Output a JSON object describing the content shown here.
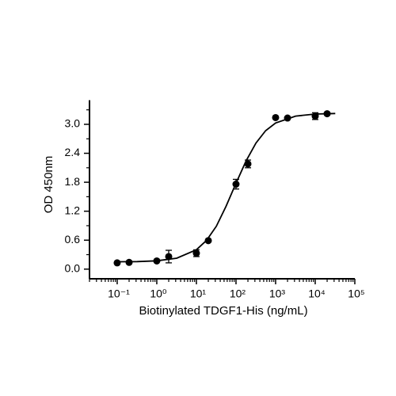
{
  "chart_data": {
    "type": "scatter",
    "xlabel": "Biotinylated TDGF1-His (ng/mL)",
    "ylabel": "OD 450nm",
    "xscale": "log",
    "xlim": [
      0.02,
      100000
    ],
    "xticks": [
      {
        "value": 0.1,
        "label": "10⁻¹"
      },
      {
        "value": 1,
        "label": "10⁰"
      },
      {
        "value": 10,
        "label": "10¹"
      },
      {
        "value": 100,
        "label": "10²"
      },
      {
        "value": 1000,
        "label": "10³"
      },
      {
        "value": 10000,
        "label": "10⁴"
      },
      {
        "value": 100000,
        "label": "10⁵"
      }
    ],
    "ylim": [
      -0.2,
      3.5
    ],
    "yticks": [
      {
        "value": 0,
        "label": "0.0"
      },
      0.6,
      1.2,
      1.8,
      2.4,
      {
        "value": 3,
        "label": "3.0"
      }
    ],
    "color": "#000000",
    "x": [
      0.1,
      0.2,
      1,
      2,
      10,
      20,
      100,
      200,
      1000,
      2000,
      10000,
      20000
    ],
    "values": [
      0.13,
      0.14,
      0.17,
      0.26,
      0.33,
      0.59,
      1.76,
      2.18,
      3.14,
      3.13,
      3.17,
      3.22
    ],
    "errors": [
      null,
      null,
      null,
      0.13,
      0.07,
      null,
      0.1,
      0.08,
      null,
      null,
      0.07,
      null
    ],
    "curve": {
      "x": [
        0.1,
        0.32,
        1,
        3.2,
        10,
        18,
        32,
        56,
        100,
        180,
        320,
        560,
        1000,
        3200,
        10000,
        32000
      ],
      "y": [
        0.152,
        0.156,
        0.172,
        0.226,
        0.402,
        0.594,
        0.89,
        1.301,
        1.78,
        2.242,
        2.612,
        2.868,
        3.027,
        3.17,
        3.213,
        3.225
      ]
    }
  }
}
